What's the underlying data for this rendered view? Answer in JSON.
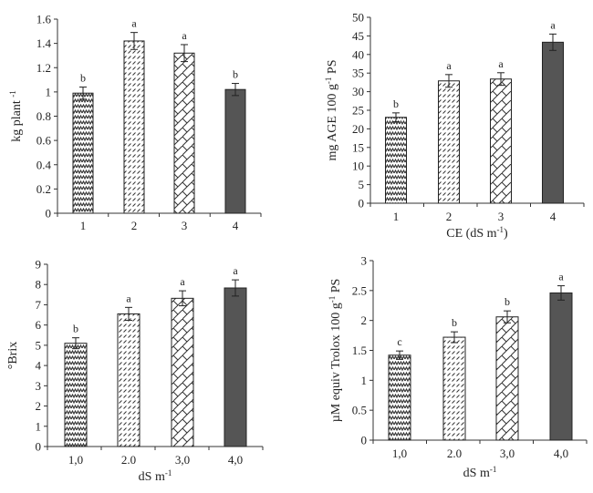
{
  "colors": {
    "dark_bar": "#555555",
    "axis": "#333333",
    "pattern_stroke": "#333333"
  },
  "bar_patterns": [
    "zigzag",
    "diagonal-lines",
    "diamond-lattice",
    "solid"
  ],
  "chart_data": [
    {
      "type": "bar",
      "categories": [
        "1",
        "2",
        "3",
        "4"
      ],
      "values": [
        0.99,
        1.42,
        1.32,
        1.02
      ],
      "errors": [
        0.05,
        0.07,
        0.07,
        0.05
      ],
      "letters": [
        "b",
        "a",
        "a",
        "b"
      ],
      "ylabel": {
        "text": "kg plant ",
        "sup": "-1",
        "after": ""
      },
      "xlabel": null,
      "ylim": [
        0,
        1.6
      ],
      "yticks": [
        "0",
        "0.2",
        "0.4",
        "0.6",
        "0.8",
        "1",
        "1.2",
        "1.4",
        "1.6"
      ],
      "grid": false
    },
    {
      "type": "bar",
      "categories": [
        "1",
        "2",
        "3",
        "4"
      ],
      "values": [
        23.1,
        32.9,
        33.4,
        43.3
      ],
      "errors": [
        1.2,
        1.7,
        1.7,
        2.2
      ],
      "letters": [
        "b",
        "a",
        "a",
        "a"
      ],
      "ylabel": {
        "text": "mg AGE 100 g",
        "sup": "-1",
        "after": " PS"
      },
      "xlabel": {
        "text": "CE (dS m",
        "sup": "-1",
        "after": ")"
      },
      "ylim": [
        0,
        50
      ],
      "yticks": [
        "0",
        "5",
        "10",
        "15",
        "20",
        "25",
        "30",
        "35",
        "40",
        "45",
        "50"
      ],
      "grid": false
    },
    {
      "type": "bar",
      "categories": [
        "1,0",
        "2.0",
        "3,0",
        "4,0"
      ],
      "values": [
        5.1,
        6.55,
        7.32,
        7.83
      ],
      "errors": [
        0.27,
        0.32,
        0.37,
        0.4
      ],
      "letters": [
        "b",
        "a",
        "a",
        "a"
      ],
      "ylabel": {
        "text": "°Brix",
        "sup": "",
        "after": ""
      },
      "xlabel": {
        "text": "dS m",
        "sup": "-1",
        "after": ""
      },
      "ylim": [
        0,
        9
      ],
      "yticks": [
        "0",
        "1",
        "2",
        "3",
        "4",
        "5",
        "6",
        "7",
        "8",
        "9"
      ],
      "grid": false
    },
    {
      "type": "bar",
      "categories": [
        "1,0",
        "2.0",
        "3,0",
        "4,0"
      ],
      "values": [
        1.42,
        1.72,
        2.06,
        2.46
      ],
      "errors": [
        0.07,
        0.09,
        0.1,
        0.12
      ],
      "letters": [
        "c",
        "b",
        "b",
        "a"
      ],
      "ylabel": {
        "text": "µM equiv Trolox 100 g",
        "sup": "-1",
        "after": " PS"
      },
      "xlabel": {
        "text": "dS m",
        "sup": "-1",
        "after": ""
      },
      "ylim": [
        0,
        3
      ],
      "yticks": [
        "0",
        "0.5",
        "1",
        "1.5",
        "2",
        "2.5",
        "3"
      ],
      "grid": false
    }
  ]
}
